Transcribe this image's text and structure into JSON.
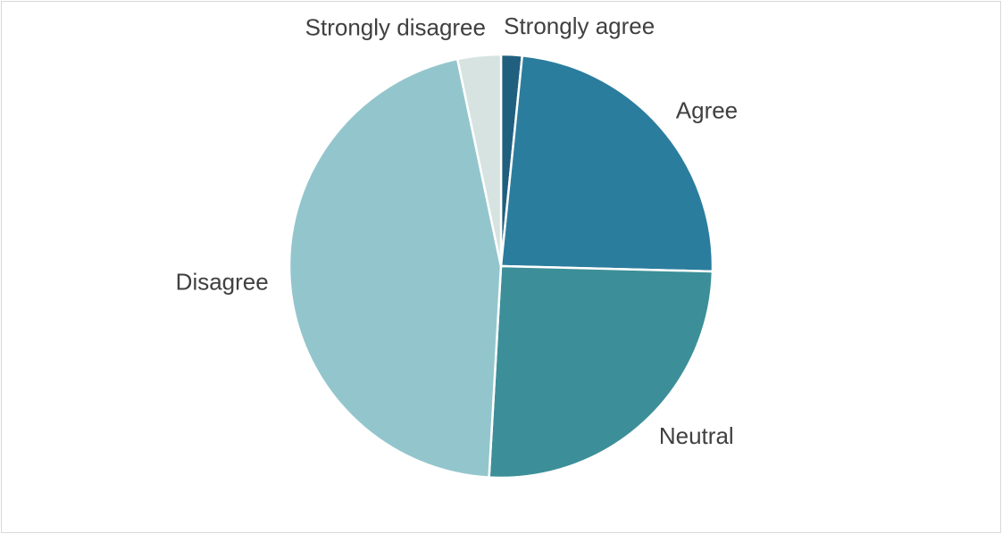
{
  "chart_data": {
    "type": "pie",
    "categories": [
      "Strongly agree",
      "Agree",
      "Neutral",
      "Disagree",
      "Strongly disagree"
    ],
    "values": [
      1.6,
      23.8,
      25.5,
      45.8,
      3.3
    ],
    "colors": [
      "#215f7e",
      "#2b7d9e",
      "#3c8f98",
      "#93c6cc",
      "#d6e3e0"
    ]
  }
}
